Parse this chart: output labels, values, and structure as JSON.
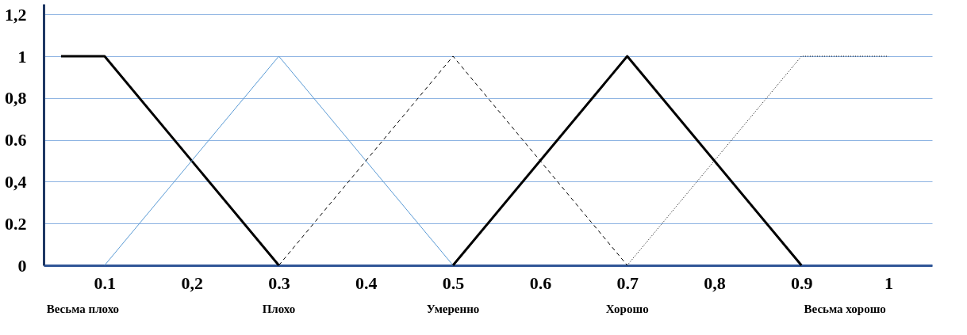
{
  "chart_data": {
    "type": "line",
    "xlim": [
      0.03,
      1.05
    ],
    "ylim": [
      0,
      1.25
    ],
    "xticks": [
      {
        "value": 0.1,
        "label": "0.1"
      },
      {
        "value": 0.2,
        "label": "0,2"
      },
      0.3,
      0.4,
      0.5,
      0.6,
      0.7,
      {
        "value": 0.8,
        "label": "0,8"
      },
      0.9,
      1
    ],
    "yticks": [
      0,
      {
        "value": 0.2,
        "label": "0.2"
      },
      {
        "value": 0.4,
        "label": "0,4"
      },
      {
        "value": 0.6,
        "label": "0.6"
      },
      {
        "value": 0.8,
        "label": "0,8"
      },
      1,
      {
        "value": 1.2,
        "label": "1,2"
      }
    ],
    "grid": "y",
    "annotations": [
      "Весьма плохо",
      "Плохо",
      "Умеренно",
      "Хорошо",
      "Весьма хорошо"
    ],
    "series": [
      {
        "color": "#000000",
        "line_style": "solid",
        "x": [
          0.05,
          0.1,
          0.3
        ],
        "values": [
          1,
          1,
          0
        ]
      },
      {
        "color": "#5b9bd5",
        "line_style": "solid",
        "x": [
          0.1,
          0.3,
          0.5
        ],
        "values": [
          0,
          1,
          0
        ]
      },
      {
        "color": "#000000",
        "line_style": "dashed",
        "x": [
          0.3,
          0.5,
          0.7
        ],
        "values": [
          0,
          1,
          0
        ]
      },
      {
        "color": "#000000",
        "line_style": "solid",
        "x": [
          0.5,
          0.7,
          0.9
        ],
        "values": [
          0,
          1,
          0
        ]
      },
      {
        "color": "#000000",
        "line_style": "dotted",
        "x": [
          0.7,
          0.9,
          1
        ],
        "values": [
          0,
          1,
          1
        ]
      }
    ]
  }
}
